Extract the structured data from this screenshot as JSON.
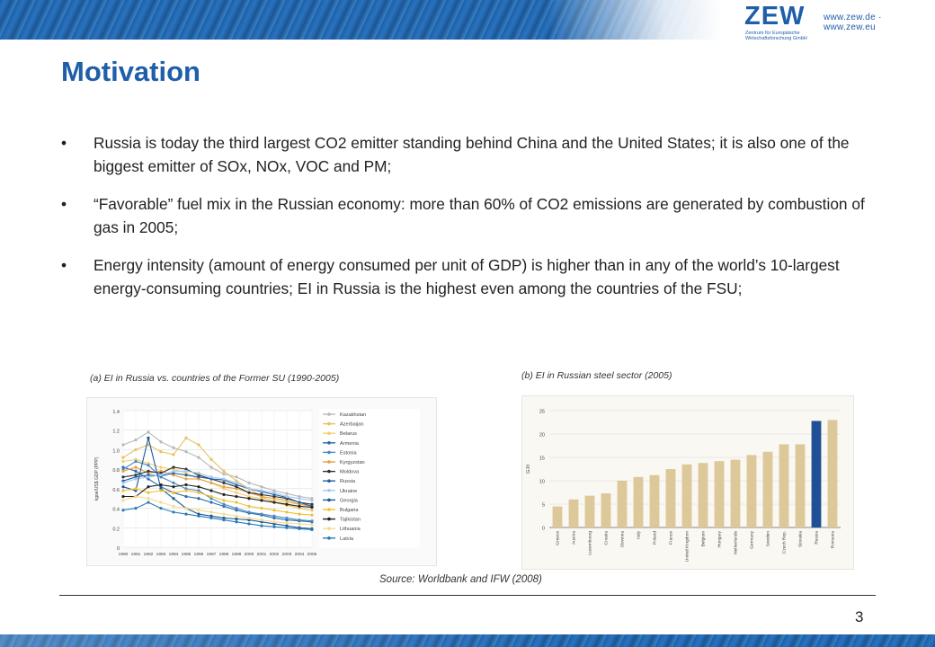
{
  "header": {
    "logo": "ZEW",
    "logo_sub": "Zentrum für Europäische Wirtschaftsforschung GmbH",
    "url": "www.zew.de · www.zew.eu"
  },
  "slide": {
    "title": "Motivation",
    "bullet_symbol": "•",
    "bullets": [
      "Russia is today the third largest CO2 emitter standing behind China and the United States; it is also one of the biggest emitter of SOx, NOx, VOC and PM;",
      "“Favorable” fuel mix in the Russian economy: more than 60% of CO2 emissions are generated by combustion of gas in 2005;",
      "Energy intensity (amount of energy consumed per unit of GDP) is higher than in any of the world’s 10-largest energy-consuming countries; EI in Russia is the highest even among the countries of the FSU;"
    ],
    "caption_a": "(a) EI  in Russia vs. countries of the Former SU (1990-2005)",
    "caption_b": "(b) EI  in Russian steel sector  (2005)",
    "source": "Source: Worldbank and IFW (2008)",
    "page_number": "3"
  },
  "chart_data": [
    {
      "type": "line",
      "ylabel": "kgoe/US$ GDP (PPP)",
      "ylim": [
        0,
        1.4
      ],
      "yticks": [
        "0",
        "0.2",
        "0.4",
        "0.6",
        "0.8",
        "1.0",
        "1.2",
        "1.4"
      ],
      "x": [
        "1990",
        "1991",
        "1992",
        "1993",
        "1994",
        "1995",
        "1996",
        "1997",
        "1998",
        "1999",
        "2000",
        "2001",
        "2002",
        "2003",
        "2004",
        "2005"
      ],
      "grid": true,
      "legend_position": "right",
      "series": [
        {
          "name": "Kazakhstan",
          "color": "#b8b8b8",
          "values": [
            1.05,
            1.1,
            1.18,
            1.08,
            1.02,
            0.98,
            0.92,
            0.82,
            0.75,
            0.72,
            0.66,
            0.62,
            0.58,
            0.55,
            0.52,
            0.5
          ]
        },
        {
          "name": "Azerbaijan",
          "color": "#e8c060",
          "values": [
            0.92,
            1.0,
            1.05,
            0.98,
            0.95,
            1.12,
            1.05,
            0.9,
            0.78,
            0.68,
            0.6,
            0.52,
            0.46,
            0.43,
            0.4,
            0.38
          ]
        },
        {
          "name": "Belarus",
          "color": "#f0d070",
          "values": [
            0.88,
            0.9,
            0.86,
            0.82,
            0.8,
            0.76,
            0.7,
            0.66,
            0.6,
            0.56,
            0.52,
            0.5,
            0.48,
            0.46,
            0.44,
            0.42
          ]
        },
        {
          "name": "Armenia",
          "color": "#2a6aa8",
          "values": [
            0.82,
            0.78,
            0.7,
            0.62,
            0.56,
            0.52,
            0.5,
            0.46,
            0.42,
            0.38,
            0.35,
            0.33,
            0.3,
            0.28,
            0.27,
            0.26
          ]
        },
        {
          "name": "Estonia",
          "color": "#4a8ac8",
          "values": [
            0.8,
            0.88,
            0.84,
            0.72,
            0.66,
            0.6,
            0.58,
            0.5,
            0.44,
            0.4,
            0.36,
            0.34,
            0.32,
            0.3,
            0.28,
            0.27
          ]
        },
        {
          "name": "Kyrgyzstan",
          "color": "#e6a040",
          "values": [
            0.78,
            0.82,
            0.76,
            0.78,
            0.74,
            0.7,
            0.7,
            0.66,
            0.62,
            0.6,
            0.56,
            0.52,
            0.5,
            0.48,
            0.44,
            0.42
          ]
        },
        {
          "name": "Moldova",
          "color": "#333333",
          "values": [
            0.72,
            0.74,
            0.78,
            0.76,
            0.82,
            0.8,
            0.74,
            0.7,
            0.66,
            0.62,
            0.56,
            0.54,
            0.52,
            0.5,
            0.46,
            0.44
          ]
        },
        {
          "name": "Russia",
          "color": "#1f5ea8",
          "values": [
            0.68,
            0.72,
            0.74,
            0.73,
            0.76,
            0.74,
            0.72,
            0.7,
            0.69,
            0.64,
            0.6,
            0.57,
            0.54,
            0.51,
            0.46,
            0.42
          ]
        },
        {
          "name": "Ukraine",
          "color": "#a8c8e8",
          "values": [
            0.66,
            0.7,
            0.72,
            0.74,
            0.78,
            0.78,
            0.76,
            0.72,
            0.7,
            0.66,
            0.6,
            0.58,
            0.56,
            0.52,
            0.5,
            0.48
          ]
        },
        {
          "name": "Georgia",
          "color": "#1a5a96",
          "values": [
            0.62,
            0.58,
            1.12,
            0.6,
            0.5,
            0.4,
            0.34,
            0.32,
            0.3,
            0.29,
            0.28,
            0.26,
            0.24,
            0.22,
            0.2,
            0.19
          ]
        },
        {
          "name": "Bulgaria",
          "color": "#f0c030",
          "values": [
            0.58,
            0.6,
            0.56,
            0.58,
            0.56,
            0.58,
            0.56,
            0.52,
            0.48,
            0.46,
            0.42,
            0.4,
            0.38,
            0.36,
            0.34,
            0.33
          ]
        },
        {
          "name": "Tajikistan",
          "color": "#222222",
          "values": [
            0.52,
            0.52,
            0.62,
            0.64,
            0.62,
            0.64,
            0.62,
            0.58,
            0.54,
            0.52,
            0.5,
            0.48,
            0.46,
            0.44,
            0.42,
            0.41
          ]
        },
        {
          "name": "Lithuania",
          "color": "#f5dc90",
          "values": [
            0.48,
            0.52,
            0.5,
            0.46,
            0.42,
            0.4,
            0.38,
            0.36,
            0.34,
            0.32,
            0.3,
            0.28,
            0.26,
            0.25,
            0.24,
            0.23
          ]
        },
        {
          "name": "Latvia",
          "color": "#2a7ab8",
          "values": [
            0.38,
            0.4,
            0.46,
            0.4,
            0.36,
            0.34,
            0.32,
            0.3,
            0.28,
            0.26,
            0.24,
            0.22,
            0.21,
            0.2,
            0.19,
            0.18
          ]
        }
      ]
    },
    {
      "type": "bar",
      "ylabel": "GJ/t",
      "ylim": [
        0,
        25
      ],
      "yticks": [
        "0",
        "5",
        "10",
        "15",
        "20",
        "25"
      ],
      "grid": true,
      "categories": [
        "Greece",
        "Austria",
        "Luxembourg",
        "Croatia",
        "Slovenia",
        "Italy",
        "Poland",
        "France",
        "United Kingdom",
        "Belgium",
        "Hungary",
        "Netherlands",
        "Germany",
        "Sweden",
        "Czech Rep.",
        "Slovakia",
        "Russia",
        "Romania"
      ],
      "values": [
        4.5,
        6.0,
        6.8,
        7.3,
        10.0,
        10.8,
        11.2,
        12.5,
        13.5,
        13.8,
        14.2,
        14.5,
        15.5,
        16.2,
        17.8,
        17.8,
        22.8,
        23.0
      ],
      "colors": {
        "default": "#dcc898",
        "highlight": "#1f4f96"
      },
      "highlight_category": "Russia"
    }
  ]
}
